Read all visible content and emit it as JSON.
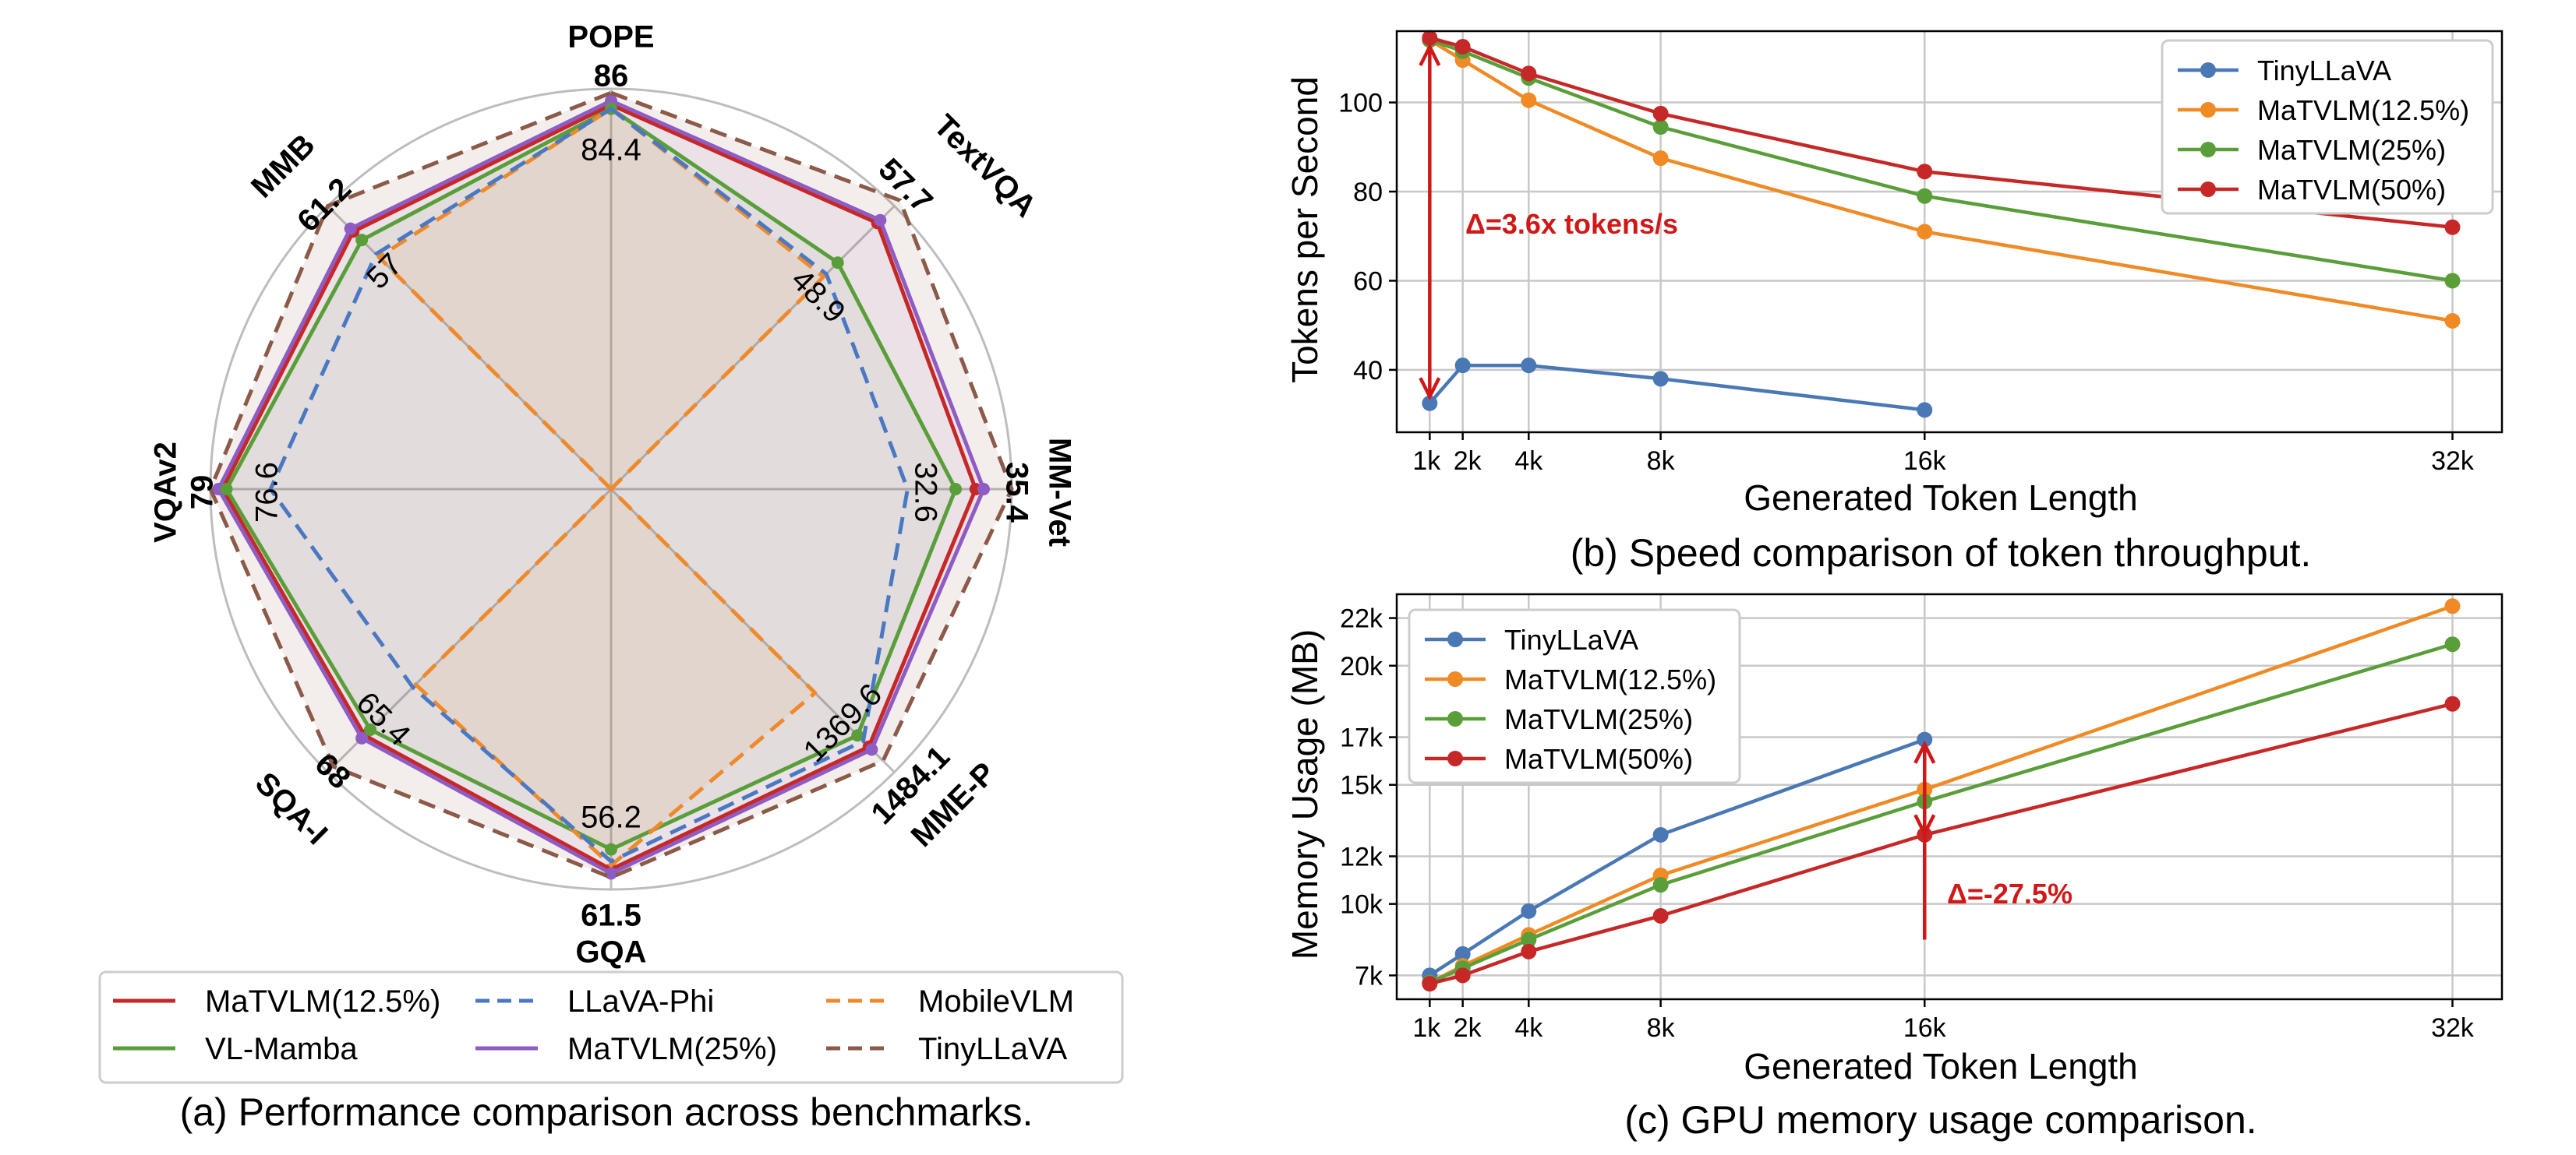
{
  "chart_data": [
    {
      "id": "radar",
      "type": "radar",
      "caption": "(a) Performance comparison across benchmarks.",
      "axes": [
        "POPE",
        "TextVQA",
        "MM-Vet",
        "MME-P",
        "GQA",
        "SQA-I",
        "VQAv2",
        "MMB"
      ],
      "axis_max_labels": [
        "86",
        "57.7",
        "35.4",
        "1484.1",
        "61.5",
        "68",
        "79",
        "61.2"
      ],
      "axis_min_labels": [
        "84.4",
        "48.9",
        "32.6",
        "1369.6",
        "56.2",
        "65.4",
        "76.6",
        "57"
      ],
      "series": [
        {
          "name": "MaTVLM(12.5%)",
          "color": "#c62828",
          "dash": "solid",
          "values": [
            0.96,
            0.94,
            0.91,
            0.91,
            0.95,
            0.87,
            0.97,
            0.91
          ]
        },
        {
          "name": "MaTVLM(25%)",
          "color": "#8e5cc2",
          "dash": "solid",
          "values": [
            0.97,
            0.95,
            0.93,
            0.92,
            0.96,
            0.88,
            0.98,
            0.92
          ]
        },
        {
          "name": "VL-Mamba",
          "color": "#5a9e3a",
          "dash": "solid",
          "values": [
            0.95,
            0.8,
            0.86,
            0.87,
            0.9,
            0.85,
            0.96,
            0.88
          ]
        },
        {
          "name": "MobileVLM",
          "color": "#ee8a2b",
          "dash": "dash",
          "values": [
            0.95,
            0.75,
            0.0,
            0.72,
            0.94,
            0.69,
            0.0,
            0.82
          ]
        },
        {
          "name": "LLaVA-Phi",
          "color": "#4a78c2",
          "dash": "dash",
          "values": [
            0.95,
            0.76,
            0.74,
            0.89,
            0.93,
            0.7,
            0.85,
            0.83
          ]
        },
        {
          "name": "TinyLLaVA",
          "color": "#8b5a48",
          "dash": "dash",
          "values": [
            0.99,
            1.02,
            1.0,
            0.96,
            0.97,
            0.98,
            1.0,
            1.0
          ]
        }
      ]
    },
    {
      "id": "speed",
      "type": "line",
      "caption": "(b) Speed comparison of token throughput.",
      "xlabel": "Generated Token Length",
      "ylabel": "Tokens per Second",
      "x": [
        1,
        2,
        4,
        8,
        16,
        32
      ],
      "x_tick_labels": [
        "1k",
        "2k",
        "4k",
        "8k",
        "16k",
        "32k"
      ],
      "xlim": [
        0,
        33.5
      ],
      "ylim": [
        26,
        116
      ],
      "y_ticks": [
        40,
        60,
        80,
        100
      ],
      "legend": "top-right",
      "grid": true,
      "annotation": "Δ=3.6x tokens/s",
      "series": [
        {
          "name": "TinyLLaVA",
          "color": "#4a78b5",
          "values": [
            32.5,
            41,
            41,
            38,
            31,
            null
          ]
        },
        {
          "name": "MaTVLM(12.5%)",
          "color": "#f08a24",
          "values": [
            114,
            109.5,
            100.5,
            87.5,
            71,
            51
          ]
        },
        {
          "name": "MaTVLM(25%)",
          "color": "#5a9e3a",
          "values": [
            114,
            111.5,
            105.5,
            94.5,
            79,
            60
          ]
        },
        {
          "name": "MaTVLM(50%)",
          "color": "#c62828",
          "values": [
            114.5,
            112.5,
            106.5,
            97.5,
            84.5,
            72
          ]
        }
      ]
    },
    {
      "id": "memory",
      "type": "line",
      "caption": "(c) GPU memory usage comparison.",
      "xlabel": "Generated Token Length",
      "ylabel": "Memory Usage (MB)",
      "x": [
        1,
        2,
        4,
        8,
        16,
        32
      ],
      "x_tick_labels": [
        "1k",
        "2k",
        "4k",
        "8k",
        "16k",
        "32k"
      ],
      "xlim": [
        0,
        33.5
      ],
      "ylim": [
        6000,
        23000
      ],
      "y_ticks": [
        7000,
        10000,
        12000,
        15000,
        17000,
        20000,
        22000
      ],
      "y_tick_labels": [
        "7k",
        "10k",
        "12k",
        "15k",
        "17k",
        "20k",
        "22k"
      ],
      "legend": "top-left",
      "grid": true,
      "annotation": "Δ=-27.5%",
      "series": [
        {
          "name": "TinyLLaVA",
          "color": "#4a78b5",
          "values": [
            7000,
            7900,
            9700,
            12900,
            16900,
            null
          ]
        },
        {
          "name": "MaTVLM(12.5%)",
          "color": "#f08a24",
          "values": [
            6700,
            7400,
            8700,
            11200,
            14800,
            22500
          ]
        },
        {
          "name": "MaTVLM(25%)",
          "color": "#5a9e3a",
          "values": [
            6700,
            7300,
            8500,
            10800,
            14300,
            20900
          ]
        },
        {
          "name": "MaTVLM(50%)",
          "color": "#c62828",
          "values": [
            6650,
            7000,
            8000,
            9500,
            12900,
            18400
          ]
        }
      ]
    }
  ]
}
